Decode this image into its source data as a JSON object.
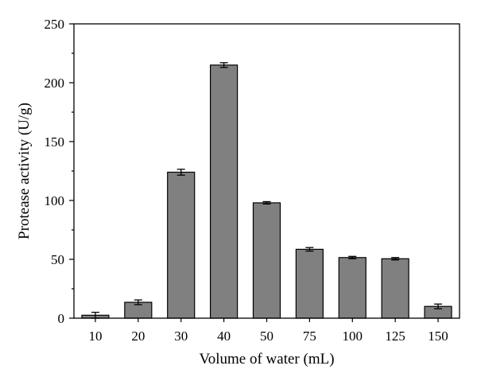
{
  "chart_data": {
    "type": "bar",
    "categories": [
      "10",
      "20",
      "30",
      "40",
      "50",
      "75",
      "100",
      "125",
      "150"
    ],
    "values": [
      2.5,
      13.5,
      124,
      215,
      98,
      58.5,
      51.5,
      50.5,
      10
    ],
    "errors": [
      2.5,
      2,
      2.5,
      2,
      1,
      1.5,
      1,
      1,
      2
    ],
    "xlabel": "Volume of water (mL)",
    "ylabel": "Protease activity (U/g)",
    "ylim": [
      0,
      250
    ],
    "yticks": [
      0,
      50,
      100,
      150,
      200,
      250
    ],
    "grid": false,
    "bar_color": "#808080"
  }
}
